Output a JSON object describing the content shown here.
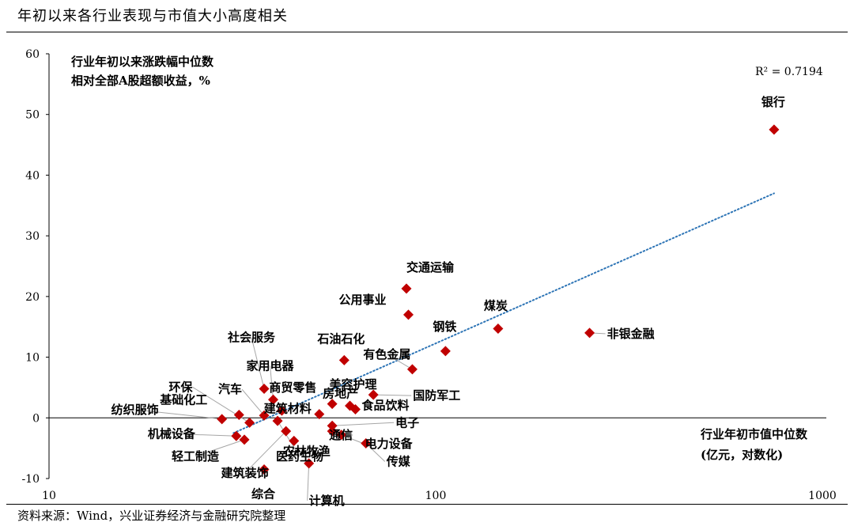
{
  "title": "年初以来各行业表现与市值大小高度相关",
  "source": "资料来源：Wind，兴业证券经济与金融研究院整理",
  "colors": {
    "marker": "#c00000",
    "trend": "#2e75b6",
    "leader": "#a6a6a6"
  },
  "chart_data": {
    "type": "scatter",
    "ylabel_lines": [
      "行业年初以来涨跌幅中位数",
      "相对全部A股超额收益，%"
    ],
    "xlabel_lines": [
      "行业年初市值中位数",
      "(亿元，对数化)"
    ],
    "r2_label": "R² = 0.7194",
    "x_scale": "log",
    "xlim": [
      10,
      1000
    ],
    "ylim": [
      -10,
      60
    ],
    "x_ticks": [
      10,
      100,
      1000
    ],
    "y_ticks": [
      -10,
      0,
      10,
      20,
      30,
      40,
      50,
      60
    ],
    "trendline": {
      "x": [
        30,
        750
      ],
      "y": [
        -2.5,
        37
      ]
    },
    "points": [
      {
        "name": "银行",
        "x": 750,
        "y": 47.5
      },
      {
        "name": "非银金融",
        "x": 250,
        "y": 14
      },
      {
        "name": "煤炭",
        "x": 145,
        "y": 14.7
      },
      {
        "name": "交通运输",
        "x": 84,
        "y": 21.3
      },
      {
        "name": "公用事业",
        "x": 85,
        "y": 17
      },
      {
        "name": "钢铁",
        "x": 106,
        "y": 11
      },
      {
        "name": "有色金属",
        "x": 87,
        "y": 8
      },
      {
        "name": "石油石化",
        "x": 58,
        "y": 9.5
      },
      {
        "name": "国防军工",
        "x": 69,
        "y": 3.8
      },
      {
        "name": "美容护理",
        "x": 60,
        "y": 2
      },
      {
        "name": "食品饮料",
        "x": 62,
        "y": 1.4
      },
      {
        "name": "房地产",
        "x": 54,
        "y": 2.3
      },
      {
        "name": "社会服务",
        "x": 36,
        "y": 4.8
      },
      {
        "name": "家用电器",
        "x": 38,
        "y": 3
      },
      {
        "name": "商贸零售",
        "x": 40,
        "y": 1.2
      },
      {
        "name": "汽车",
        "x": 36,
        "y": 0.4
      },
      {
        "name": "环保",
        "x": 33,
        "y": -0.8
      },
      {
        "name": "基础化工",
        "x": 31,
        "y": 0.5
      },
      {
        "name": "建筑材料",
        "x": 50,
        "y": 0.6
      },
      {
        "name": "纺织服饰",
        "x": 28,
        "y": -0.2
      },
      {
        "name": "电子",
        "x": 54,
        "y": -1.3
      },
      {
        "name": "通信",
        "x": 54,
        "y": -2.2
      },
      {
        "name": "机械设备",
        "x": 30.5,
        "y": -3
      },
      {
        "name": "电力设备",
        "x": 57,
        "y": -2.8
      },
      {
        "name": "轻工制造",
        "x": 32,
        "y": -3.6
      },
      {
        "name": "农林牧渔",
        "x": 43,
        "y": -3.8
      },
      {
        "name": "传媒",
        "x": 66,
        "y": -4.2
      },
      {
        "name": "建筑装饰",
        "x": 41,
        "y": -2.2
      },
      {
        "name": "医药生物",
        "x": 39,
        "y": -0.5
      },
      {
        "name": "计算机",
        "x": 47,
        "y": -7.5
      },
      {
        "name": "综合",
        "x": 36,
        "y": -8.5
      }
    ]
  }
}
